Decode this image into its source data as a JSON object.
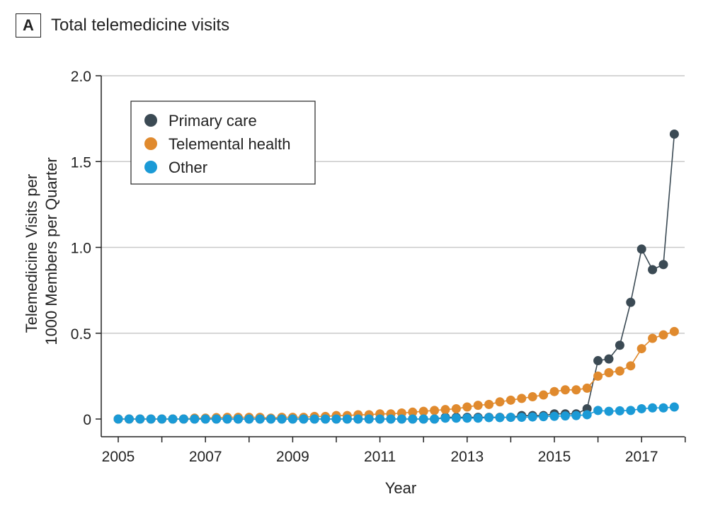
{
  "panel": {
    "letter": "A",
    "title": "Total telemedicine visits"
  },
  "chart_data": {
    "type": "line",
    "title": "Total telemedicine visits",
    "xlabel": "Year",
    "ylabel": [
      "Telemedicine Visits per",
      "1000 Members per Quarter"
    ],
    "xlim": [
      2005,
      2018
    ],
    "ylim": [
      0,
      2.0
    ],
    "x_ticks": [
      2005,
      2007,
      2009,
      2011,
      2013,
      2015,
      2017
    ],
    "x_tick_labels": [
      "2005",
      "2007",
      "2009",
      "2011",
      "2013",
      "2015",
      "2017"
    ],
    "y_ticks": [
      0,
      0.5,
      1.0,
      1.5,
      2.0
    ],
    "y_tick_labels": [
      "0",
      "0.5",
      "1.0",
      "1.5",
      "2.0"
    ],
    "grid": "horizontal",
    "legend_position": "top-left",
    "x": [
      2005.0,
      2005.25,
      2005.5,
      2005.75,
      2006.0,
      2006.25,
      2006.5,
      2006.75,
      2007.0,
      2007.25,
      2007.5,
      2007.75,
      2008.0,
      2008.25,
      2008.5,
      2008.75,
      2009.0,
      2009.25,
      2009.5,
      2009.75,
      2010.0,
      2010.25,
      2010.5,
      2010.75,
      2011.0,
      2011.25,
      2011.5,
      2011.75,
      2012.0,
      2012.25,
      2012.5,
      2012.75,
      2013.0,
      2013.25,
      2013.5,
      2013.75,
      2014.0,
      2014.25,
      2014.5,
      2014.75,
      2015.0,
      2015.25,
      2015.5,
      2015.75,
      2016.0,
      2016.25,
      2016.5,
      2016.75,
      2017.0,
      2017.25,
      2017.5,
      2017.75
    ],
    "series": [
      {
        "name": "Primary care",
        "color": "#3b4a54",
        "values": [
          0,
          0,
          0,
          0,
          0,
          0,
          0,
          0,
          0,
          0,
          0,
          0,
          0,
          0,
          0,
          0,
          0,
          0,
          0,
          0,
          0,
          0,
          0,
          0,
          0,
          0,
          0,
          0,
          0,
          0,
          0.01,
          0.01,
          0.01,
          0.01,
          0.01,
          0.01,
          0.01,
          0.02,
          0.02,
          0.02,
          0.03,
          0.03,
          0.03,
          0.06,
          0.34,
          0.35,
          0.43,
          0.68,
          0.99,
          0.87,
          0.9,
          1.66
        ]
      },
      {
        "name": "Telemental health",
        "color": "#e08a2e",
        "values": [
          0,
          0,
          0,
          0,
          0,
          0,
          0,
          0.005,
          0.005,
          0.008,
          0.01,
          0.01,
          0.01,
          0.01,
          0.005,
          0.01,
          0.01,
          0.01,
          0.015,
          0.015,
          0.02,
          0.02,
          0.025,
          0.025,
          0.03,
          0.03,
          0.035,
          0.04,
          0.045,
          0.05,
          0.055,
          0.06,
          0.07,
          0.08,
          0.085,
          0.1,
          0.11,
          0.12,
          0.13,
          0.14,
          0.16,
          0.17,
          0.17,
          0.18,
          0.25,
          0.27,
          0.28,
          0.31,
          0.41,
          0.47,
          0.49,
          0.51
        ]
      },
      {
        "name": "Other",
        "color": "#1b9ad6",
        "values": [
          0,
          0,
          0,
          0,
          0,
          0,
          0,
          0,
          0,
          0,
          0,
          0,
          0,
          0,
          0,
          0,
          0,
          0,
          0,
          0,
          0,
          0,
          0,
          0,
          0,
          0,
          0,
          0,
          0,
          0,
          0.005,
          0.005,
          0.005,
          0.005,
          0.008,
          0.008,
          0.01,
          0.01,
          0.012,
          0.014,
          0.016,
          0.018,
          0.02,
          0.025,
          0.05,
          0.045,
          0.048,
          0.05,
          0.06,
          0.065,
          0.065,
          0.07
        ]
      }
    ]
  }
}
